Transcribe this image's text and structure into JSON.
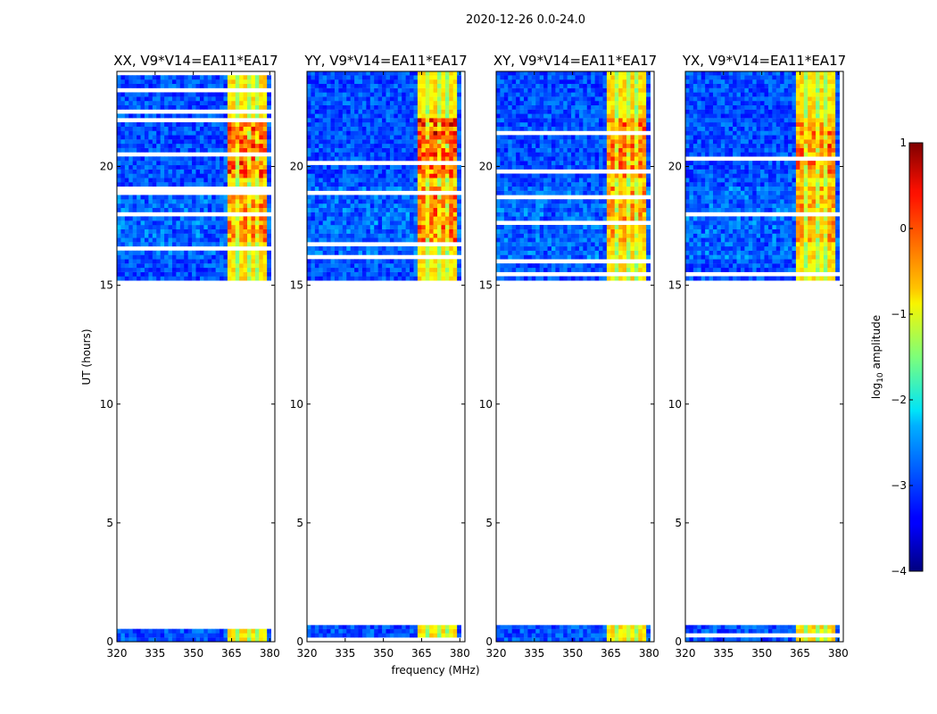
{
  "figure_title": "2020-12-26 0.0-24.0",
  "chart_data": {
    "type": "heatmap",
    "title": "2020-12-26 0.0-24.0",
    "xlabel": "frequency (MHz)",
    "ylabel": "UT (hours)",
    "xlim": [
      320,
      382
    ],
    "ylim": [
      0,
      24
    ],
    "xticks": [
      320,
      335,
      350,
      365,
      380
    ],
    "yticks": [
      0,
      5,
      10,
      15,
      20
    ],
    "colorbar": {
      "label_main": "log",
      "label_sub": "10",
      "label_rest": " amplitude",
      "range": [
        -4,
        1
      ],
      "ticks": [
        1,
        0,
        -1,
        -2,
        -3,
        -4
      ],
      "tick_labels": [
        "1",
        "0",
        "−1",
        "−2",
        "−3",
        "−4"
      ],
      "colormap": "jet"
    },
    "panels": [
      {
        "name": "XX",
        "title": "XX, V9*V14=EA11*EA17",
        "peak_level": 0.35
      },
      {
        "name": "YY",
        "title": "YY, V9*V14=EA11*EA17",
        "peak_level": 0.55
      },
      {
        "name": "XY",
        "title": "XY, V9*V14=EA11*EA17",
        "peak_level": 0.1
      },
      {
        "name": "YX",
        "title": "YX, V9*V14=EA11*EA17",
        "peak_level": 0.1
      }
    ],
    "data_coverage_ut_hours": [
      [
        0.0,
        0.7
      ],
      [
        15.2,
        24.0
      ]
    ],
    "gap_ut_hours": [
      0.7,
      15.2
    ],
    "rfi_band_mhz": [
      364,
      379
    ],
    "rfi_subband_gaps_mhz": [
      367.5,
      371.5,
      375.5
    ],
    "background_level": -3.0
  }
}
